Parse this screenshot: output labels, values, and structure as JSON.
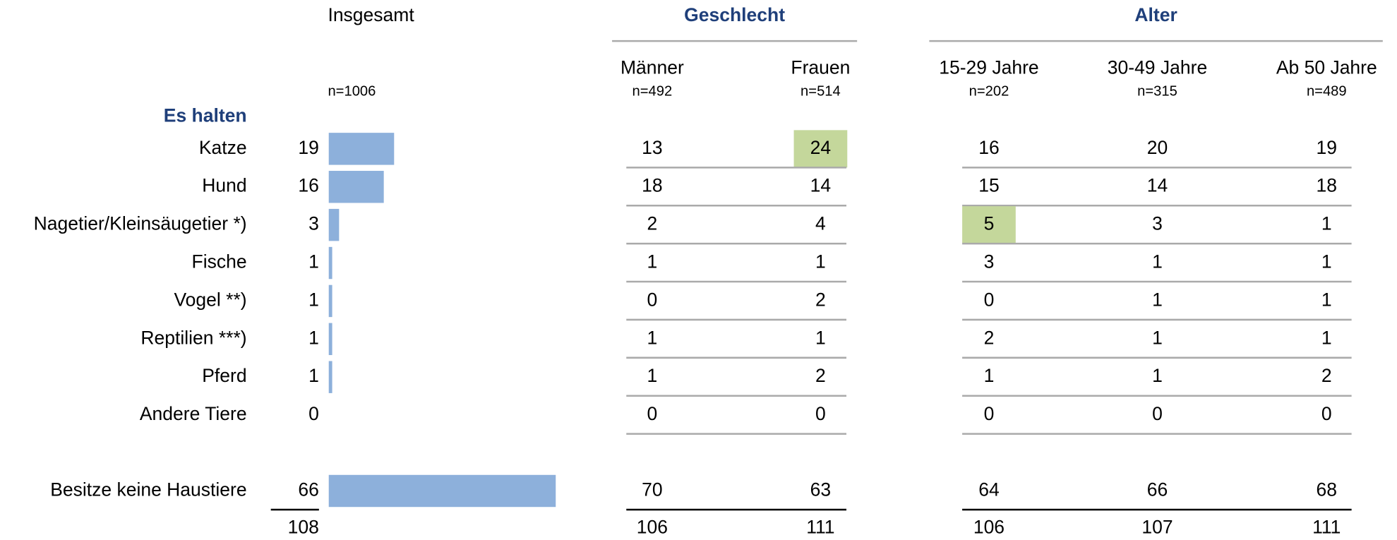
{
  "total_column": {
    "label": "Insgesamt",
    "n": "n=1006"
  },
  "groups": [
    {
      "title": "Geschlecht",
      "columns": [
        {
          "label": "Männer",
          "n": "n=492"
        },
        {
          "label": "Frauen",
          "n": "n=514"
        }
      ]
    },
    {
      "title": "Alter",
      "columns": [
        {
          "label": "15-29 Jahre",
          "n": "n=202"
        },
        {
          "label": "30-49 Jahre",
          "n": "n=315"
        },
        {
          "label": "Ab 50 Jahre",
          "n": "n=489"
        }
      ]
    }
  ],
  "section": "Es halten",
  "bar_color": "#8db0db",
  "highlight_color": "#c4d79b",
  "rows": [
    {
      "label": "Katze",
      "total": 19,
      "values": [
        13,
        24,
        16,
        20,
        19
      ],
      "highlight": "Frauen"
    },
    {
      "label": "Hund",
      "total": 16,
      "values": [
        18,
        14,
        15,
        14,
        18
      ]
    },
    {
      "label": "Nagetier/Kleinsäugetier *)",
      "total": 3,
      "values": [
        2,
        4,
        5,
        3,
        1
      ],
      "highlight": "15-29 Jahre"
    },
    {
      "label": "Fische",
      "total": 1,
      "values": [
        1,
        1,
        3,
        1,
        1
      ]
    },
    {
      "label": "Vogel **)",
      "total": 1,
      "values": [
        0,
        2,
        0,
        1,
        1
      ]
    },
    {
      "label": "Reptilien ***)",
      "total": 1,
      "values": [
        1,
        1,
        2,
        1,
        1
      ]
    },
    {
      "label": "Pferd",
      "total": 1,
      "values": [
        1,
        2,
        1,
        1,
        2
      ]
    },
    {
      "label": "Andere Tiere",
      "total": 0,
      "values": [
        0,
        0,
        0,
        0,
        0
      ]
    }
  ],
  "none_row": {
    "label": "Besitze keine Haustiere",
    "total": 66,
    "values": [
      70,
      63,
      64,
      66,
      68
    ]
  },
  "sum_row": {
    "total": 108,
    "values": [
      106,
      111,
      106,
      107,
      111
    ]
  }
}
